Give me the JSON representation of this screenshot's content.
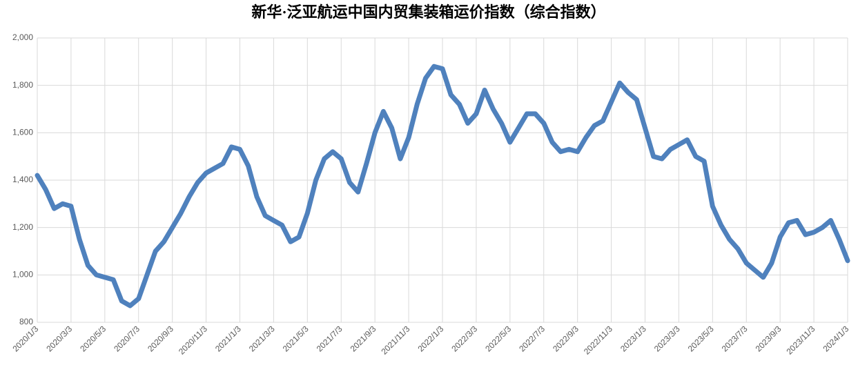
{
  "chart_data": {
    "type": "line",
    "title": "新华·泛亚航运中国内贸集装箱运价指数（综合指数）",
    "categories": [
      "2020/1/3",
      null,
      null,
      null,
      "2020/3/3",
      null,
      null,
      null,
      "2020/5/3",
      null,
      null,
      null,
      "2020/7/3",
      null,
      null,
      null,
      "2020/9/3",
      null,
      null,
      null,
      "2020/11/3",
      null,
      null,
      null,
      "2021/1/3",
      null,
      null,
      null,
      "2021/3/3",
      null,
      null,
      null,
      "2021/5/3",
      null,
      null,
      null,
      "2021/7/3",
      null,
      null,
      null,
      "2021/9/3",
      null,
      null,
      null,
      "2021/11/3",
      null,
      null,
      null,
      "2022/1/3",
      null,
      null,
      null,
      "2022/3/3",
      null,
      null,
      null,
      "2022/5/3",
      null,
      null,
      null,
      "2022/7/3",
      null,
      null,
      null,
      "2022/9/3",
      null,
      null,
      null,
      "2022/11/3",
      null,
      null,
      null,
      "2023/1/3",
      null,
      null,
      null,
      "2023/3/3",
      null,
      null,
      null,
      "2023/5/3",
      null,
      null,
      null,
      "2023/7/3",
      null,
      null,
      null,
      "2023/9/3",
      null,
      null,
      null,
      "2023/11/3",
      null,
      null,
      null,
      "2024/1/3"
    ],
    "series": [
      {
        "name": "综合指数",
        "color": "#4f81bd",
        "values": [
          1420,
          1360,
          1280,
          1300,
          1290,
          1150,
          1040,
          1000,
          990,
          980,
          890,
          870,
          900,
          1000,
          1100,
          1140,
          1200,
          1260,
          1330,
          1390,
          1430,
          1450,
          1470,
          1540,
          1530,
          1460,
          1330,
          1250,
          1230,
          1210,
          1140,
          1160,
          1260,
          1400,
          1490,
          1520,
          1490,
          1390,
          1350,
          1470,
          1600,
          1690,
          1620,
          1490,
          1580,
          1720,
          1830,
          1880,
          1870,
          1760,
          1720,
          1640,
          1680,
          1780,
          1700,
          1640,
          1560,
          1620,
          1680,
          1680,
          1640,
          1560,
          1520,
          1530,
          1520,
          1580,
          1630,
          1650,
          1730,
          1810,
          1770,
          1740,
          1620,
          1500,
          1490,
          1530,
          1550,
          1570,
          1500,
          1480,
          1290,
          1210,
          1150,
          1110,
          1050,
          1020,
          990,
          1050,
          1160,
          1220,
          1230,
          1170,
          1180,
          1200,
          1230,
          1150,
          1060
        ]
      }
    ],
    "ylim": [
      800,
      2000
    ],
    "yticks": [
      800,
      {
        "value": 1000,
        "label": "1,000"
      },
      {
        "value": 1200,
        "label": "1,200"
      },
      {
        "value": 1400,
        "label": "1,400"
      },
      {
        "value": 1600,
        "label": "1,600"
      },
      {
        "value": 1800,
        "label": "1,800"
      },
      {
        "value": 2000,
        "label": "2,000"
      }
    ],
    "grid": true
  }
}
